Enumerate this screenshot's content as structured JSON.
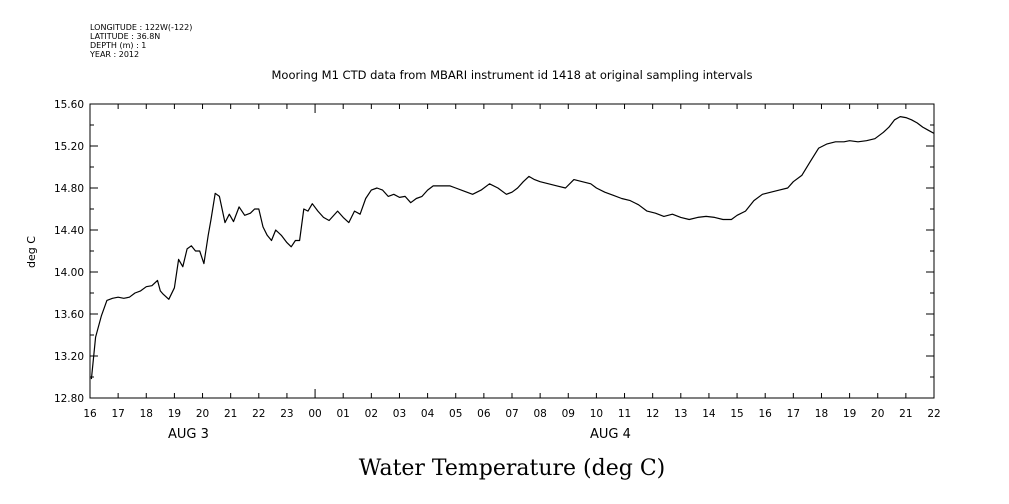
{
  "meta": {
    "lines": [
      "LONGITUDE : 122W(-122)",
      "LATITUDE : 36.8N",
      "DEPTH (m) : 1",
      "YEAR : 2012"
    ]
  },
  "caption": "Water Temperature (deg C)",
  "colors": {
    "line": "#000000",
    "axis": "#000000",
    "background": "#ffffff"
  },
  "chart_data": {
    "type": "line",
    "title": "Mooring M1 CTD data from MBARI instrument id 1418 at original sampling intervals",
    "xlabel": "",
    "ylabel": "deg C",
    "x_unit": "hour",
    "xlim": [
      16,
      46
    ],
    "ylim": [
      12.8,
      15.6
    ],
    "grid": false,
    "y_ticks": [
      12.8,
      13.2,
      13.6,
      14.0,
      14.4,
      14.8,
      15.2,
      15.6
    ],
    "y_tick_labels": [
      "12.80",
      "13.20",
      "13.60",
      "14.00",
      "14.40",
      "14.80",
      "15.20",
      "15.60"
    ],
    "x_ticks": [
      16,
      17,
      18,
      19,
      20,
      21,
      22,
      23,
      24,
      25,
      26,
      27,
      28,
      29,
      30,
      31,
      32,
      33,
      34,
      35,
      36,
      37,
      38,
      39,
      40,
      41,
      42,
      43,
      44,
      45,
      46
    ],
    "x_tick_labels": [
      "16",
      "17",
      "18",
      "19",
      "20",
      "21",
      "22",
      "23",
      "00",
      "01",
      "02",
      "03",
      "04",
      "05",
      "06",
      "07",
      "08",
      "09",
      "10",
      "11",
      "12",
      "13",
      "14",
      "15",
      "16",
      "17",
      "18",
      "19",
      "20",
      "21",
      "22"
    ],
    "date_labels": [
      {
        "text": "AUG  3",
        "x": 19.5
      },
      {
        "text": "AUG  4",
        "x": 34.5
      }
    ],
    "series": [
      {
        "name": "",
        "x": [
          16.05,
          16.2,
          16.4,
          16.6,
          16.8,
          17.0,
          17.2,
          17.4,
          17.6,
          17.8,
          18.0,
          18.2,
          18.4,
          18.5,
          18.6,
          18.8,
          19.0,
          19.15,
          19.3,
          19.45,
          19.6,
          19.75,
          19.9,
          20.05,
          20.2,
          20.3,
          20.45,
          20.6,
          20.8,
          20.95,
          21.1,
          21.3,
          21.5,
          21.7,
          21.85,
          22.0,
          22.15,
          22.3,
          22.45,
          22.6,
          22.8,
          23.0,
          23.15,
          23.3,
          23.45,
          23.6,
          23.75,
          23.9,
          24.1,
          24.3,
          24.5,
          24.8,
          25.0,
          25.2,
          25.4,
          25.6,
          25.8,
          26.0,
          26.2,
          26.4,
          26.6,
          26.8,
          27.0,
          27.2,
          27.4,
          27.6,
          27.8,
          28.0,
          28.2,
          28.5,
          28.8,
          29.0,
          29.3,
          29.6,
          29.9,
          30.2,
          30.5,
          30.8,
          31.0,
          31.2,
          31.4,
          31.6,
          31.8,
          32.0,
          32.3,
          32.6,
          32.9,
          33.2,
          33.5,
          33.8,
          34.0,
          34.3,
          34.6,
          34.9,
          35.2,
          35.5,
          35.8,
          36.1,
          36.4,
          36.7,
          37.0,
          37.3,
          37.6,
          37.9,
          38.2,
          38.5,
          38.8,
          39.0,
          39.3,
          39.6,
          39.9,
          40.2,
          40.5,
          40.8,
          41.0,
          41.3,
          41.6,
          41.9,
          42.2,
          42.5,
          42.8,
          43.0,
          43.3,
          43.6,
          43.9,
          44.2,
          44.4,
          44.6,
          44.8,
          45.0,
          45.2,
          45.4,
          45.6,
          45.8,
          46.0
        ],
        "values": [
          12.98,
          13.38,
          13.58,
          13.73,
          13.75,
          13.76,
          13.75,
          13.76,
          13.8,
          13.82,
          13.86,
          13.87,
          13.92,
          13.82,
          13.79,
          13.74,
          13.85,
          14.12,
          14.05,
          14.22,
          14.25,
          14.2,
          14.2,
          14.08,
          14.35,
          14.5,
          14.75,
          14.72,
          14.47,
          14.55,
          14.48,
          14.62,
          14.54,
          14.56,
          14.6,
          14.6,
          14.43,
          14.35,
          14.3,
          14.4,
          14.35,
          14.28,
          14.24,
          14.3,
          14.3,
          14.6,
          14.58,
          14.65,
          14.58,
          14.52,
          14.49,
          14.58,
          14.52,
          14.47,
          14.58,
          14.55,
          14.7,
          14.78,
          14.8,
          14.78,
          14.72,
          14.74,
          14.71,
          14.72,
          14.66,
          14.7,
          14.72,
          14.78,
          14.82,
          14.82,
          14.82,
          14.8,
          14.77,
          14.74,
          14.78,
          14.84,
          14.8,
          14.74,
          14.76,
          14.8,
          14.86,
          14.91,
          14.88,
          14.86,
          14.84,
          14.82,
          14.8,
          14.88,
          14.86,
          14.84,
          14.8,
          14.76,
          14.73,
          14.7,
          14.68,
          14.64,
          14.58,
          14.56,
          14.53,
          14.55,
          14.52,
          14.5,
          14.52,
          14.53,
          14.52,
          14.5,
          14.5,
          14.54,
          14.58,
          14.68,
          14.74,
          14.76,
          14.78,
          14.8,
          14.86,
          14.92,
          15.05,
          15.18,
          15.22,
          15.24,
          15.24,
          15.25,
          15.24,
          15.25,
          15.27,
          15.33,
          15.38,
          15.45,
          15.48,
          15.47,
          15.45,
          15.42,
          15.38,
          15.35,
          15.32
        ]
      }
    ]
  }
}
